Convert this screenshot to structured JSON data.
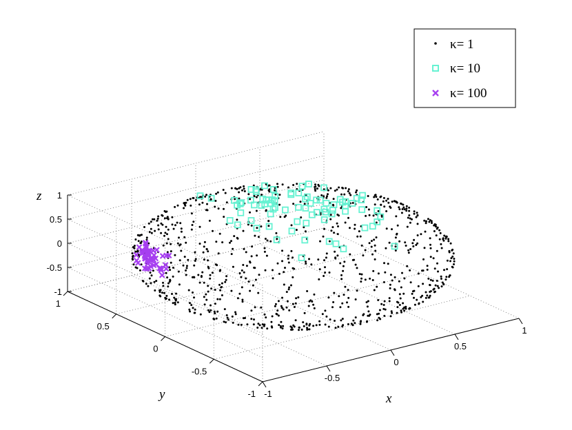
{
  "chart_data": {
    "type": "scatter",
    "projection": "3d",
    "title": "",
    "xlabel": "x",
    "ylabel": "y",
    "zlabel": "z",
    "xlim": [
      -1,
      1
    ],
    "ylim": [
      -1,
      1
    ],
    "zlim": [
      -1,
      1
    ],
    "x_ticks": [
      "-1",
      "-0.5",
      "0",
      "0.5",
      "1"
    ],
    "y_ticks": [
      "-1",
      "-0.5",
      "0",
      "0.5",
      "1"
    ],
    "z_ticks": [
      "-1",
      "-0.5",
      "0",
      "0.5",
      "1"
    ],
    "grid": true,
    "box": true,
    "legend_position": "top-right",
    "series": [
      {
        "name": "κ= 1",
        "marker": "dot",
        "color": "#000000",
        "points": "approximately 1000 points spread roughly uniformly over the unit sphere"
      },
      {
        "name": "κ= 10",
        "marker": "square",
        "color": "#66f2d2",
        "points": "about 80 points clustered around the upper pole, mostly z between 0 and 1"
      },
      {
        "name": "κ= 100",
        "marker": "x",
        "color": "#a63ff0",
        "points": "about 50 points tightly clustered around a direction near (x,y,z) ≈ (-0.55, 0.75, -0.35)"
      }
    ]
  }
}
